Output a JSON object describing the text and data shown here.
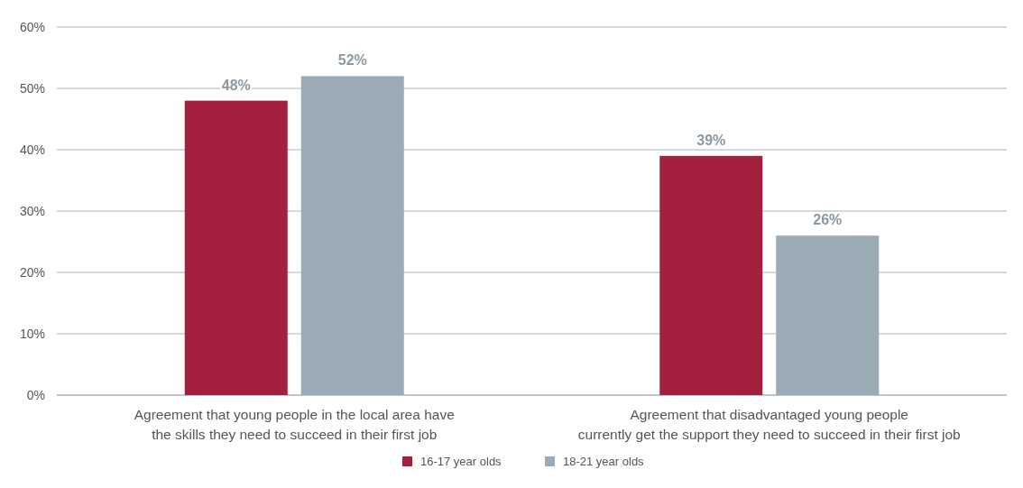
{
  "chart_data": {
    "type": "bar",
    "categories": [
      "Agreement that young people in the local area have\nthe skills they need to succeed in their first job",
      "Agreement that disadvantaged young people\ncurrently get the support they need to succeed in their first job"
    ],
    "series": [
      {
        "name": "16-17 year olds",
        "color": "#a3213f",
        "values": [
          48,
          39
        ],
        "value_labels": [
          "48%",
          "39%"
        ]
      },
      {
        "name": "18-21 year olds",
        "color": "#9aabb5",
        "values": [
          52,
          26
        ],
        "value_labels": [
          "52%",
          "26%"
        ]
      }
    ],
    "ylim": [
      0,
      60
    ],
    "yticks": [
      {
        "value": 0,
        "label": "0%"
      },
      {
        "value": 10,
        "label": "10%"
      },
      {
        "value": 20,
        "label": "20%"
      },
      {
        "value": 30,
        "label": "30%"
      },
      {
        "value": 40,
        "label": "40%"
      },
      {
        "value": 50,
        "label": "50%"
      },
      {
        "value": 60,
        "label": "60%"
      }
    ],
    "grid": "y",
    "legend": "bottom"
  }
}
